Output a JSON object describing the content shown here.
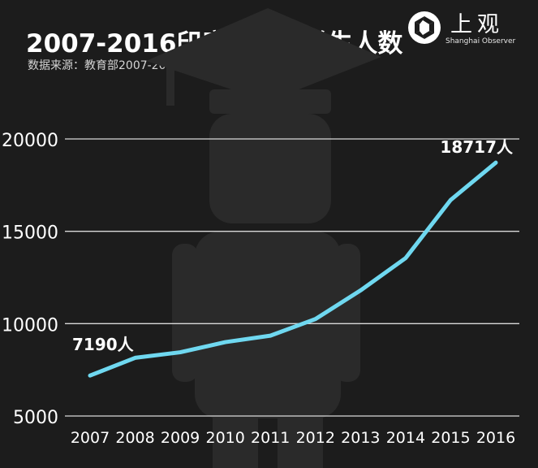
{
  "header": {
    "title": "2007-2016印度来华留学生人数",
    "subtitle": "数据来源：教育部2007-2016来华留学生统计"
  },
  "brand": {
    "name_cn": "上观",
    "name_en": "Shanghai Observer"
  },
  "colors": {
    "background": "#1c1c1c",
    "line": "#6fd8f0",
    "grid": "#d9d9d9",
    "silhouette": "#2a2a2a"
  },
  "chart_data": {
    "type": "line",
    "title": "2007-2016印度来华留学生人数",
    "xlabel": "",
    "ylabel": "",
    "categories": [
      "2007",
      "2008",
      "2009",
      "2010",
      "2011",
      "2012",
      "2013",
      "2014",
      "2015",
      "2016"
    ],
    "values": [
      7190,
      8150,
      8450,
      9000,
      9350,
      10250,
      11800,
      13550,
      16700,
      18717
    ],
    "ylim": [
      5000,
      20000
    ],
    "yticks": [
      "5000",
      "10000",
      "15000",
      "20000"
    ],
    "grid": true,
    "legend": "none",
    "annotations": [
      {
        "index": 0,
        "text": "7190人"
      },
      {
        "index": 9,
        "text": "18717人"
      }
    ]
  }
}
